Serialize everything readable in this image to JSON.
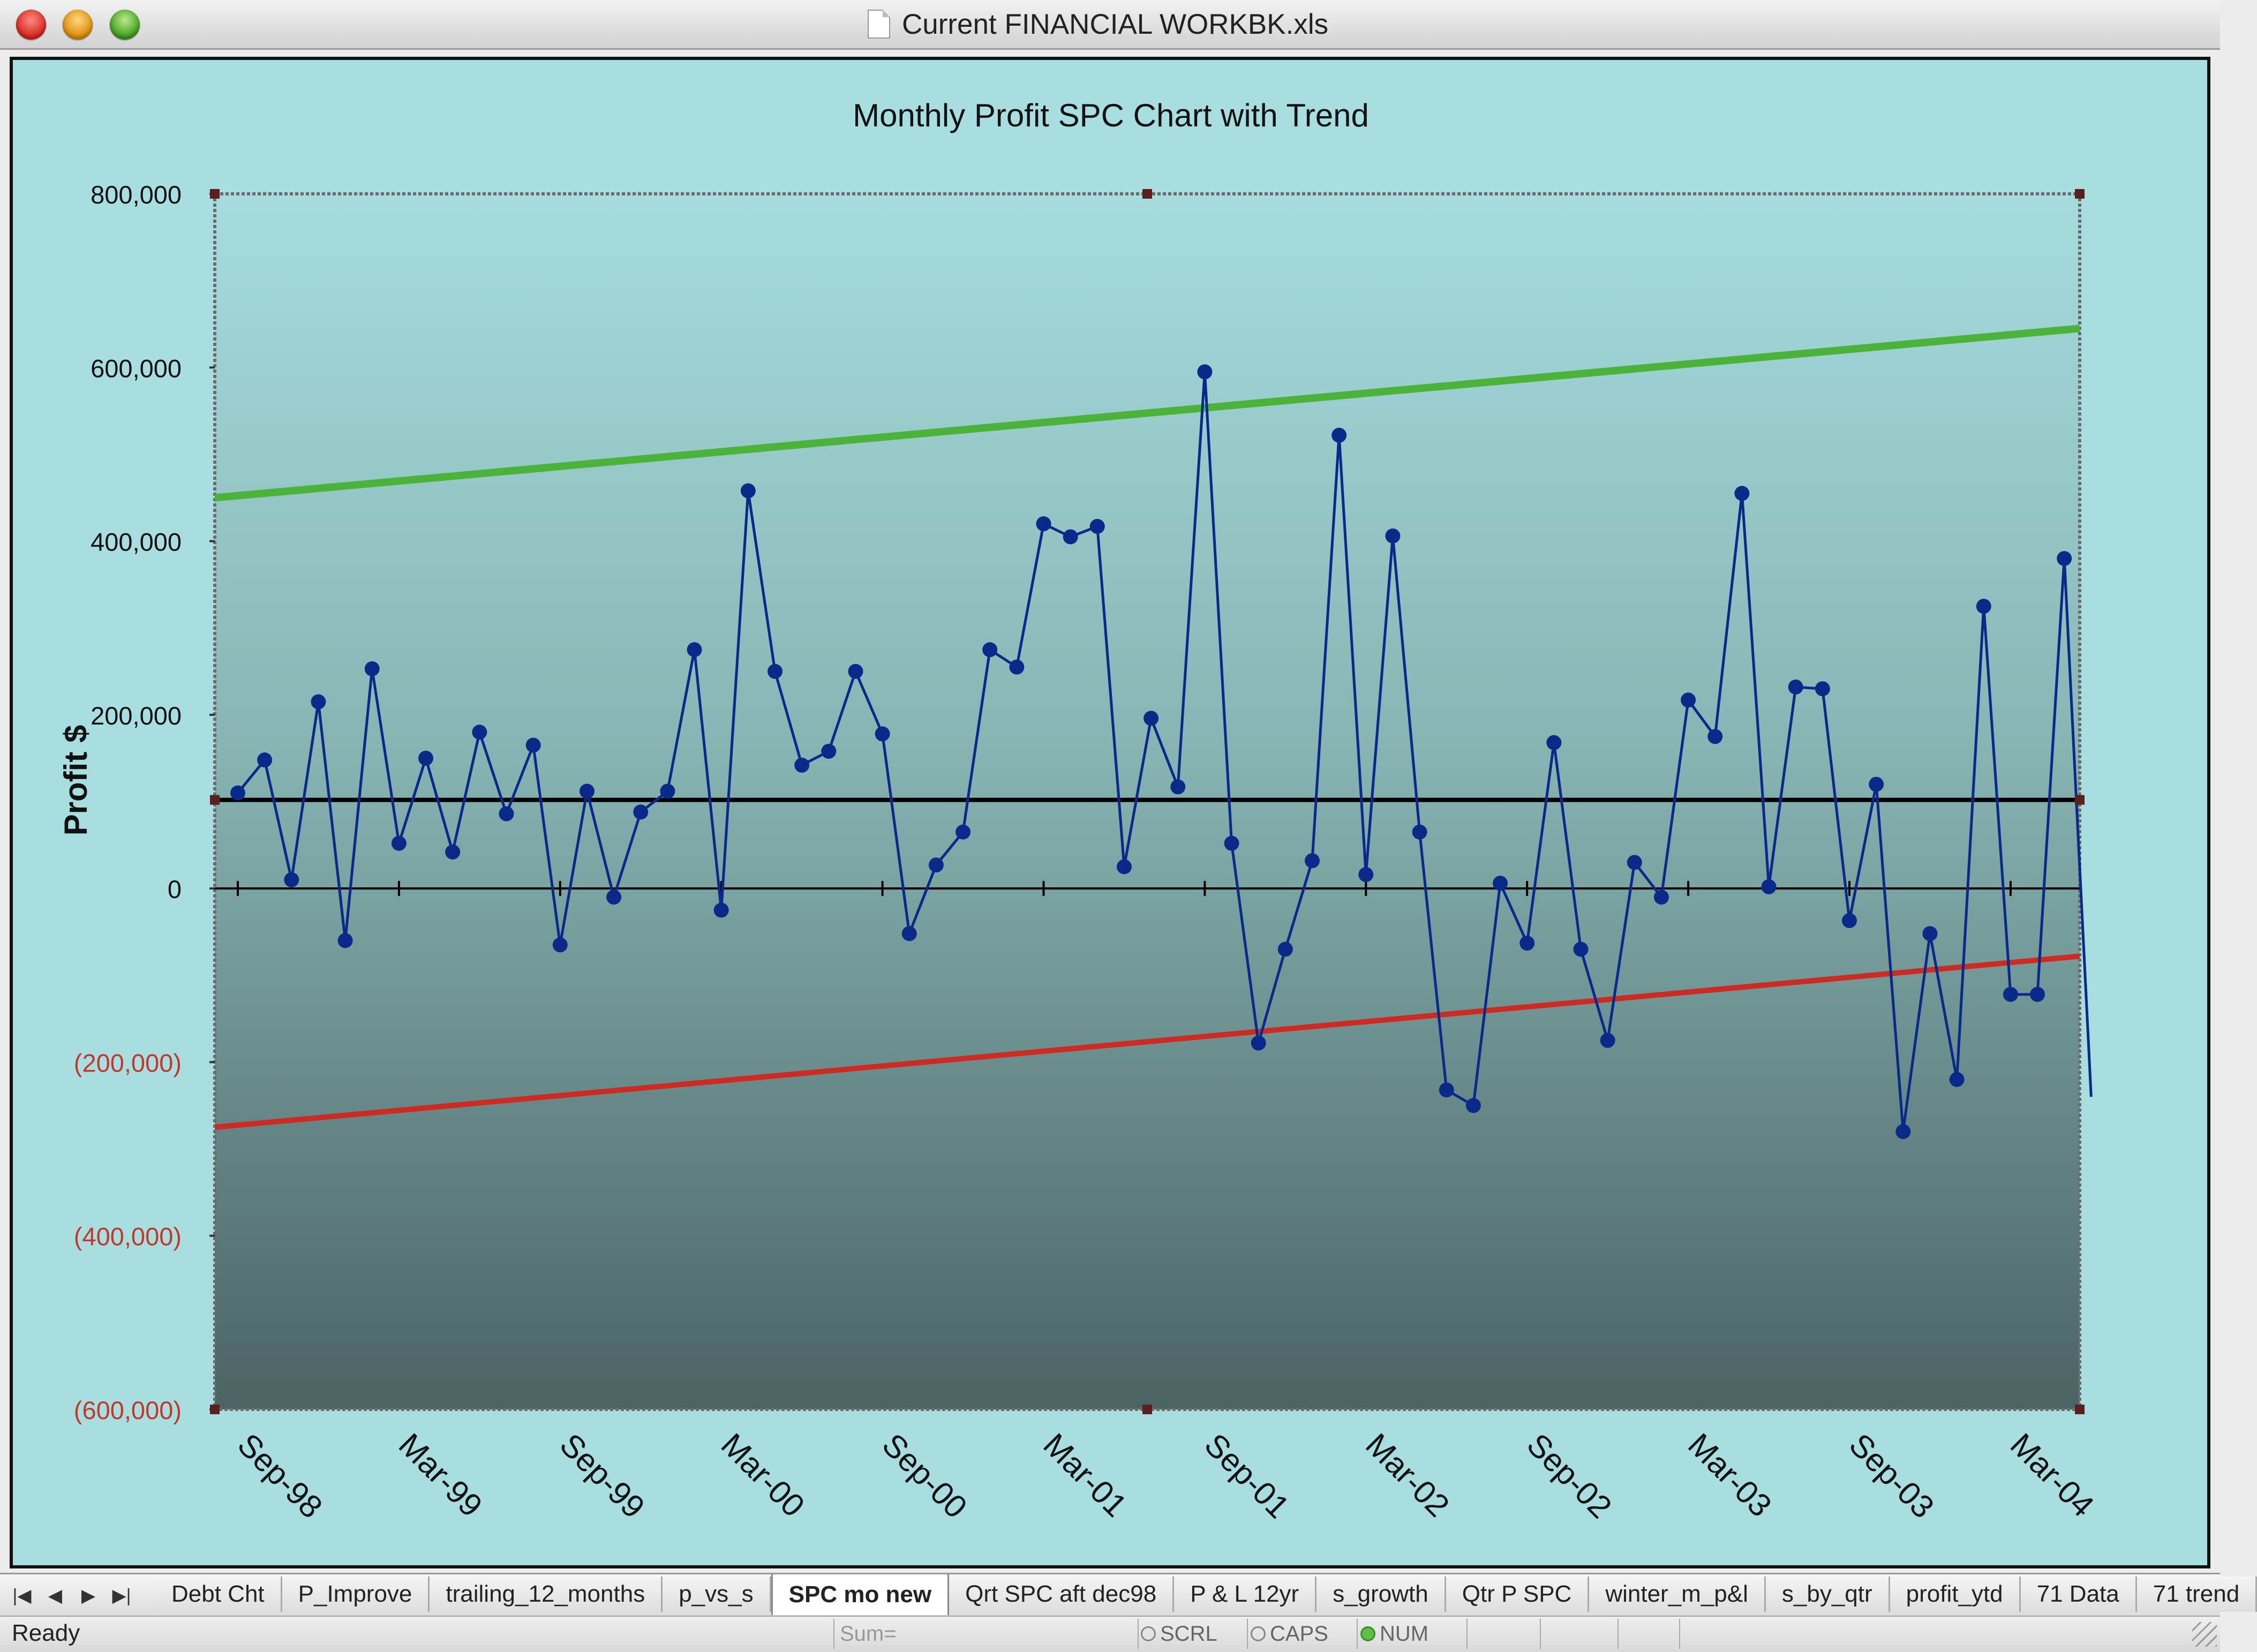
{
  "window": {
    "title": "Current FINANCIAL WORKBK.xls"
  },
  "chart_data": {
    "type": "line",
    "title": "Monthly Profit SPC Chart with Trend",
    "xlabel": "",
    "ylabel": "Profit $",
    "ylim": [
      -600000,
      800000
    ],
    "y_ticks": [
      -600000,
      -400000,
      -200000,
      0,
      200000,
      400000,
      600000,
      800000
    ],
    "y_tick_labels": [
      "(600,000)",
      "(400,000)",
      "(200,000)",
      "0",
      "200,000",
      "400,000",
      "600,000",
      "800,000"
    ],
    "x_tick_labels": [
      "Sep-98",
      "Mar-99",
      "Sep-99",
      "Mar-00",
      "Sep-00",
      "Mar-01",
      "Sep-01",
      "Mar-02",
      "Sep-02",
      "Mar-03",
      "Sep-03",
      "Mar-04"
    ],
    "grid": false,
    "legend": "none",
    "colors": {
      "profit": "#0a2a8a",
      "upper_limit": "#4bb33a",
      "lower_limit": "#cc2a22",
      "mean": "#000000",
      "negative_tick_label": "#c0392b"
    },
    "series": [
      {
        "role": "profit",
        "values": [
          110000,
          148000,
          10000,
          215000,
          -60000,
          253000,
          52000,
          150000,
          42000,
          180000,
          86000,
          165000,
          -65000,
          112000,
          -10000,
          88000,
          112000,
          275000,
          -25000,
          458000,
          250000,
          142000,
          158000,
          250000,
          178000,
          -52000,
          27000,
          65000,
          275000,
          255000,
          420000,
          405000,
          417000,
          25000,
          196000,
          117000,
          595000,
          52000,
          -178000,
          -70000,
          32000,
          522000,
          16000,
          406000,
          65000,
          -232000,
          -250000,
          6000,
          -63000,
          168000,
          -70000,
          -175000,
          30000,
          -10000,
          217000,
          175000,
          455000,
          2000,
          232000,
          230000,
          -37000,
          120000,
          -280000,
          -52000,
          -220000,
          325000,
          -122000,
          -122000,
          380000,
          -240000
        ]
      },
      {
        "role": "upper_limit",
        "start": 450000,
        "end": 645000
      },
      {
        "role": "mean",
        "start": 102000,
        "end": 102000
      },
      {
        "role": "lower_limit",
        "start": -275000,
        "end": -78000
      }
    ]
  },
  "sheet_tabs": [
    "Debt Cht",
    "P_Improve",
    "trailing_12_months",
    "p_vs_s",
    "SPC mo new",
    "Qrt SPC aft dec98",
    "P & L 12yr",
    "s_growth",
    "Qtr P SPC",
    "winter_m_p&l",
    "s_by_qtr",
    "profit_ytd",
    "71 Data",
    "71 trend"
  ],
  "active_tab": "SPC mo new",
  "nav_buttons": [
    "|◀",
    "◀",
    "▶",
    "▶|"
  ],
  "status": {
    "ready": "Ready",
    "sum_label": "Sum=",
    "indicators": [
      {
        "label": "SCRL",
        "on": false
      },
      {
        "label": "CAPS",
        "on": false
      },
      {
        "label": "NUM",
        "on": true
      }
    ]
  }
}
